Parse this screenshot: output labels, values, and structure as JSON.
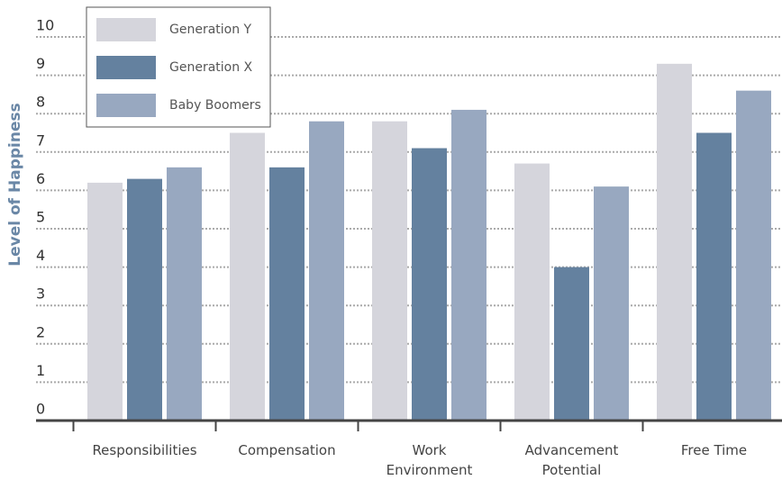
{
  "chart_data": {
    "type": "bar",
    "y_label": "Level of Happiness",
    "categories": [
      "Responsibilities",
      "Compensation",
      "Work Environment",
      "Advancement Potential",
      "Free Time"
    ],
    "series": [
      {
        "name": "Generation Y",
        "color": "#d5d5dc",
        "values": [
          6.2,
          7.5,
          7.8,
          6.7,
          9.3
        ]
      },
      {
        "name": "Generation X",
        "color": "#64819f",
        "values": [
          6.3,
          6.6,
          7.1,
          4.0,
          7.5
        ]
      },
      {
        "name": "Baby Boomers",
        "color": "#98a8c0",
        "values": [
          6.6,
          7.8,
          8.1,
          6.1,
          8.6
        ]
      }
    ],
    "ylim": [
      0,
      10
    ],
    "yticks": [
      0,
      1,
      2,
      3,
      4,
      5,
      6,
      7,
      8,
      9,
      10
    ],
    "grid": true,
    "legend": "upper left"
  }
}
